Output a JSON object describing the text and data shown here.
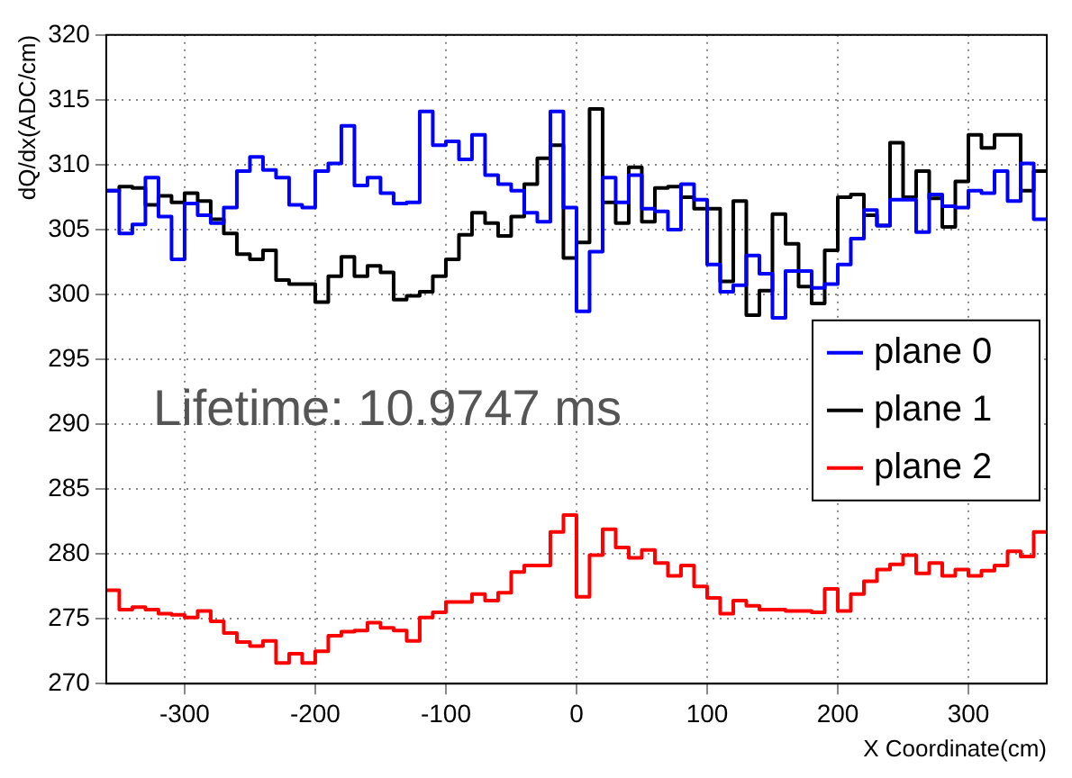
{
  "chart_data": {
    "type": "histogram",
    "xlabel": "X Coordinate(cm)",
    "ylabel": "dQ/dx(ADC/cm)",
    "annotations": [
      "Lifetime: 10.9747 ms"
    ],
    "bins": [
      -360,
      -350,
      -340,
      -330,
      -320,
      -310,
      -300,
      -290,
      -280,
      -270,
      -260,
      -250,
      -240,
      -230,
      -220,
      -210,
      -200,
      -190,
      -180,
      -170,
      -160,
      -150,
      -140,
      -130,
      -120,
      -110,
      -100,
      -90,
      -80,
      -70,
      -60,
      -50,
      -40,
      -30,
      -20,
      -10,
      0,
      10,
      20,
      30,
      40,
      50,
      60,
      70,
      80,
      90,
      100,
      110,
      120,
      130,
      140,
      150,
      160,
      170,
      180,
      190,
      200,
      210,
      220,
      230,
      240,
      250,
      260,
      270,
      280,
      290,
      300,
      310,
      320,
      330,
      340,
      350,
      360
    ],
    "series": [
      {
        "name": "plane 0",
        "color": "#0000ff",
        "values": [
          308.0,
          304.7,
          305.4,
          309.0,
          306.0,
          302.7,
          307.0,
          306.1,
          305.5,
          306.7,
          309.5,
          310.6,
          309.6,
          309.0,
          306.9,
          306.7,
          309.5,
          310.1,
          313.0,
          308.4,
          309.0,
          307.8,
          307.0,
          307.1,
          314.1,
          311.5,
          311.8,
          310.4,
          312.3,
          309.2,
          308.5,
          308.0,
          306.3,
          305.6,
          314.1,
          306.7,
          298.7,
          303.3,
          309.0,
          307.1,
          309.2,
          306.6,
          306.4,
          305.0,
          308.5,
          307.3,
          302.3,
          300.2,
          300.7,
          303.0,
          301.6,
          298.2,
          301.8,
          301.8,
          300.5,
          300.8,
          302.3,
          304.3,
          306.5,
          305.3,
          307.3,
          307.3,
          304.8,
          307.7,
          306.8,
          306.7,
          308.0,
          307.8,
          309.5,
          307.2,
          310.1,
          305.8
        ]
      },
      {
        "name": "plane 1",
        "color": "#000000",
        "values": [
          308.0,
          308.3,
          308.2,
          306.9,
          307.6,
          307.1,
          307.8,
          307.2,
          305.8,
          304.7,
          303.1,
          302.7,
          303.4,
          301.1,
          300.8,
          300.8,
          299.4,
          301.4,
          302.9,
          301.4,
          302.2,
          301.7,
          299.6,
          299.9,
          300.2,
          301.4,
          302.7,
          304.6,
          306.3,
          305.5,
          304.5,
          306.0,
          308.5,
          310.5,
          311.5,
          302.8,
          304.0,
          314.3,
          307.1,
          305.5,
          309.8,
          305.6,
          308.2,
          308.3,
          307.5,
          306.6,
          306.6,
          301.0,
          307.2,
          298.4,
          300.3,
          306.2,
          303.9,
          300.6,
          299.3,
          303.4,
          307.5,
          307.7,
          306.1,
          305.3,
          311.7,
          307.5,
          309.5,
          307.4,
          305.2,
          308.7,
          312.3,
          311.3,
          312.3,
          312.3,
          308.0,
          309.5
        ]
      },
      {
        "name": "plane 2",
        "color": "#ff0000",
        "values": [
          277.2,
          275.7,
          275.9,
          275.7,
          275.4,
          275.3,
          275.1,
          275.6,
          274.8,
          273.9,
          273.2,
          272.9,
          273.3,
          271.6,
          272.3,
          271.6,
          272.5,
          273.7,
          274.0,
          274.1,
          274.7,
          274.3,
          274.1,
          273.3,
          275.1,
          275.5,
          276.3,
          276.3,
          276.9,
          276.4,
          277.0,
          278.6,
          279.1,
          279.1,
          281.7,
          283.0,
          276.7,
          279.9,
          281.9,
          280.5,
          279.7,
          280.3,
          279.3,
          278.3,
          279.1,
          277.5,
          276.6,
          275.4,
          276.4,
          276.0,
          275.7,
          275.7,
          275.6,
          275.6,
          275.5,
          277.3,
          275.6,
          276.9,
          277.9,
          278.8,
          279.2,
          279.9,
          278.5,
          279.3,
          278.3,
          278.8,
          278.3,
          278.7,
          279.1,
          280.2,
          279.8,
          281.7
        ]
      }
    ],
    "xlim": [
      -360,
      360
    ],
    "xticks": [
      -300,
      -200,
      -100,
      0,
      100,
      200,
      300
    ],
    "ylim": [
      270,
      320
    ],
    "yticks": [
      270,
      275,
      280,
      285,
      290,
      295,
      300,
      305,
      310,
      315,
      320
    ],
    "grid": true,
    "legend": "right",
    "marker": "none",
    "line_style": "solid"
  }
}
